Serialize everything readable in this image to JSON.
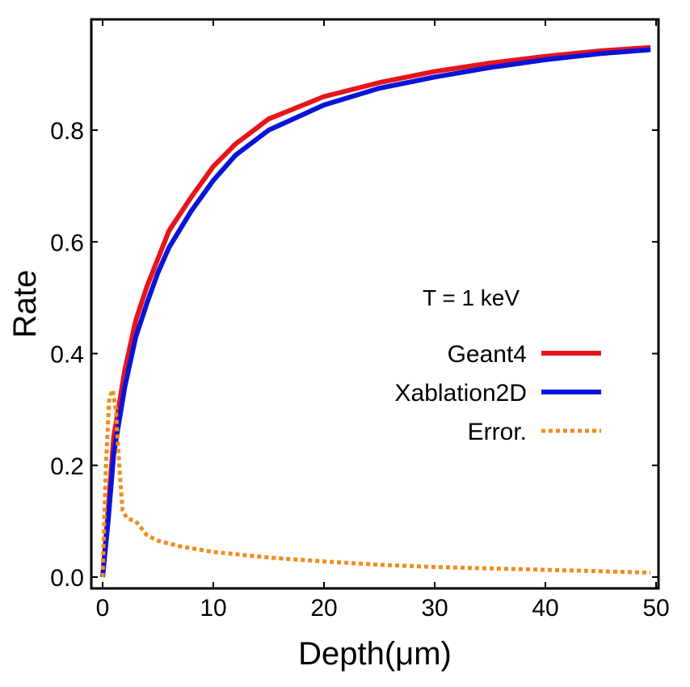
{
  "chart_data": {
    "type": "line",
    "title": "",
    "xlabel": "Depth(μm)",
    "ylabel": "Rate",
    "xlim": [
      -1,
      51
    ],
    "ylim": [
      -0.02,
      1.0
    ],
    "xticks": [
      0,
      10,
      20,
      30,
      40,
      50
    ],
    "xtick_labels": [
      "0",
      "10",
      "20",
      "30",
      "40",
      "50"
    ],
    "yticks": [
      0.0,
      0.2,
      0.4,
      0.6,
      0.8
    ],
    "ytick_labels": [
      "0.0",
      "0.2",
      "0.4",
      "0.6",
      "0.8"
    ],
    "grid": false,
    "legend_title": "T = 1 keV",
    "legend_placement": "center-right",
    "series": [
      {
        "name": "Geant4",
        "color": "#e8141b",
        "style": "solid",
        "x": [
          0,
          0.5,
          1,
          2,
          3,
          4,
          5,
          6,
          8,
          10,
          12,
          15,
          20,
          25,
          30,
          35,
          40,
          45,
          49.5
        ],
        "y": [
          0,
          0.12,
          0.25,
          0.37,
          0.46,
          0.52,
          0.57,
          0.62,
          0.68,
          0.735,
          0.775,
          0.82,
          0.86,
          0.885,
          0.905,
          0.92,
          0.932,
          0.942,
          0.948
        ]
      },
      {
        "name": "Xablation2D",
        "color": "#0a14d8",
        "style": "solid",
        "x": [
          0,
          0.5,
          1,
          2,
          3,
          4,
          5,
          6,
          8,
          10,
          12,
          15,
          20,
          25,
          30,
          35,
          40,
          45,
          49.5
        ],
        "y": [
          0,
          0.1,
          0.22,
          0.34,
          0.43,
          0.49,
          0.545,
          0.59,
          0.655,
          0.71,
          0.755,
          0.8,
          0.845,
          0.875,
          0.895,
          0.912,
          0.926,
          0.937,
          0.944
        ]
      },
      {
        "name": "Error.",
        "color": "#f28c1e",
        "style": "dotted",
        "x": [
          0,
          0.3,
          0.6,
          0.9,
          1.2,
          1.5,
          1.8,
          2.2,
          3,
          4,
          5,
          7,
          10,
          15,
          20,
          25,
          30,
          40,
          49.5
        ],
        "y": [
          0,
          0.2,
          0.32,
          0.335,
          0.3,
          0.2,
          0.12,
          0.105,
          0.1,
          0.075,
          0.065,
          0.055,
          0.045,
          0.035,
          0.028,
          0.022,
          0.018,
          0.013,
          0.008
        ]
      }
    ]
  }
}
